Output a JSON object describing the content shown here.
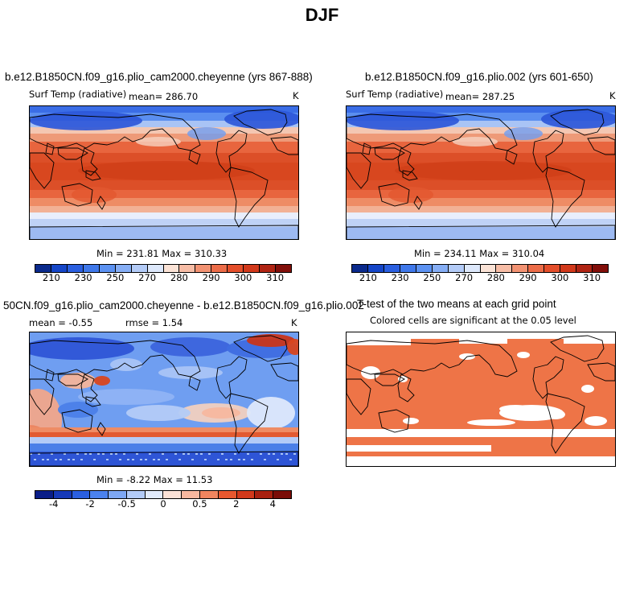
{
  "title": "DJF",
  "panel_a": {
    "case_title": "b.e12.B1850CN.f09_g16.plio_cam2000.cheyenne (yrs 867-888)",
    "variable": "Surf Temp (radiative)",
    "mean_text": "mean= 286.70",
    "units": "K",
    "minmax_text": "Min = 231.81 Max = 310.33"
  },
  "panel_b": {
    "case_title": "b.e12.B1850CN.f09_g16.plio.002 (yrs 601-650)",
    "variable": "Surf Temp (radiative)",
    "mean_text": "mean= 287.25",
    "units": "K",
    "minmax_text": "Min = 234.11 Max = 310.04"
  },
  "panel_c": {
    "case_title": "50CN.f09_g16.plio_cam2000.cheyenne - b.e12.B1850CN.f09_g16.plio.002",
    "mean_text": "mean =  -0.55",
    "rmse_text": "rmse =   1.54",
    "units": "K",
    "minmax_text": "Min =  -8.22 Max =  11.53"
  },
  "panel_d": {
    "title": "T-test of the two means at each grid point",
    "subtitle": "Colored cells are significant at the 0.05 level"
  },
  "colorbar_abs": {
    "ticks": [
      "210",
      "230",
      "250",
      "270",
      "280",
      "290",
      "300",
      "310"
    ],
    "colors": [
      "#0a2a8c",
      "#1546c8",
      "#2a5fe0",
      "#3f78ea",
      "#5c92f2",
      "#86aef5",
      "#b3cbf7",
      "#dde8fb",
      "#fbe3d6",
      "#f7bda6",
      "#f29272",
      "#ec6c48",
      "#e44e2a",
      "#d2391b",
      "#b02413",
      "#820f0a"
    ]
  },
  "colorbar_diff": {
    "ticks": [
      "-4",
      "-2",
      "-0.5",
      "0",
      "0.5",
      "2",
      "4"
    ],
    "colors": [
      "#0a1e88",
      "#1639b8",
      "#2a5fe0",
      "#4b82ee",
      "#7ea7f3",
      "#b3cbf7",
      "#e1eafb",
      "#fbe1d6",
      "#f7b79f",
      "#f1855f",
      "#e8582f",
      "#d2391b",
      "#a8200f",
      "#7a0c07"
    ]
  },
  "colors": {
    "ttest_fill": "#ee7447",
    "coast": "#000000"
  }
}
